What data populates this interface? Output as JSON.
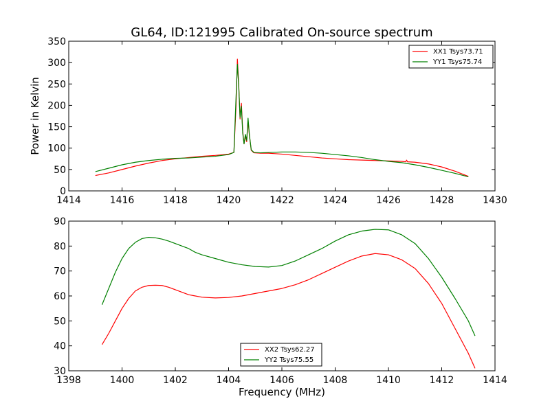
{
  "figure": {
    "title": "GL64, ID:121995 Calibrated On-source spectrum"
  },
  "chart_data": [
    {
      "type": "line",
      "title": "GL64, ID:121995 Calibrated On-source spectrum",
      "xlabel": "",
      "ylabel": "Power in Kelvin",
      "xlim": [
        1414,
        1430
      ],
      "ylim": [
        0,
        350
      ],
      "xticks": [
        1414,
        1416,
        1418,
        1420,
        1422,
        1424,
        1426,
        1428,
        1430
      ],
      "yticks": [
        0,
        50,
        100,
        150,
        200,
        250,
        300,
        350
      ],
      "grid": false,
      "legend_position": "top-right",
      "series": [
        {
          "name": "XX1 Tsys73.71",
          "color": "#ff0000",
          "points": [
            [
              1415.0,
              36
            ],
            [
              1415.5,
              42
            ],
            [
              1416.0,
              50
            ],
            [
              1416.5,
              58
            ],
            [
              1417.0,
              65
            ],
            [
              1417.5,
              71
            ],
            [
              1418.0,
              75
            ],
            [
              1418.5,
              78
            ],
            [
              1419.0,
              81
            ],
            [
              1419.5,
              83
            ],
            [
              1420.0,
              86
            ],
            [
              1420.2,
              90
            ],
            [
              1420.28,
              200
            ],
            [
              1420.33,
              308
            ],
            [
              1420.38,
              250
            ],
            [
              1420.43,
              168
            ],
            [
              1420.48,
              205
            ],
            [
              1420.53,
              140
            ],
            [
              1420.58,
              110
            ],
            [
              1420.63,
              128
            ],
            [
              1420.68,
              115
            ],
            [
              1420.73,
              165
            ],
            [
              1420.78,
              130
            ],
            [
              1420.85,
              95
            ],
            [
              1420.95,
              89
            ],
            [
              1421.2,
              88
            ],
            [
              1421.5,
              88
            ],
            [
              1422.0,
              86
            ],
            [
              1422.5,
              83
            ],
            [
              1423.0,
              80
            ],
            [
              1423.5,
              77
            ],
            [
              1424.0,
              75
            ],
            [
              1424.5,
              73
            ],
            [
              1425.0,
              72
            ],
            [
              1425.5,
              71
            ],
            [
              1426.0,
              70
            ],
            [
              1426.5,
              69
            ],
            [
              1426.65,
              68
            ],
            [
              1426.68,
              72
            ],
            [
              1426.72,
              68
            ],
            [
              1427.0,
              67
            ],
            [
              1427.5,
              63
            ],
            [
              1428.0,
              56
            ],
            [
              1428.5,
              46
            ],
            [
              1429.0,
              34
            ]
          ]
        },
        {
          "name": "YY1 Tsys75.74",
          "color": "#008000",
          "points": [
            [
              1415.0,
              45
            ],
            [
              1415.5,
              53
            ],
            [
              1416.0,
              61
            ],
            [
              1416.5,
              67
            ],
            [
              1417.0,
              71
            ],
            [
              1417.5,
              74
            ],
            [
              1418.0,
              76
            ],
            [
              1418.5,
              77
            ],
            [
              1419.0,
              79
            ],
            [
              1419.5,
              81
            ],
            [
              1420.0,
              85
            ],
            [
              1420.2,
              90
            ],
            [
              1420.28,
              220
            ],
            [
              1420.33,
              296
            ],
            [
              1420.38,
              245
            ],
            [
              1420.43,
              172
            ],
            [
              1420.48,
              198
            ],
            [
              1420.53,
              135
            ],
            [
              1420.58,
              110
            ],
            [
              1420.63,
              132
            ],
            [
              1420.68,
              118
            ],
            [
              1420.73,
              170
            ],
            [
              1420.78,
              132
            ],
            [
              1420.85,
              96
            ],
            [
              1420.95,
              90
            ],
            [
              1421.2,
              89
            ],
            [
              1421.5,
              90
            ],
            [
              1422.0,
              91
            ],
            [
              1422.5,
              91
            ],
            [
              1423.0,
              90
            ],
            [
              1423.5,
              88
            ],
            [
              1424.0,
              85
            ],
            [
              1424.5,
              82
            ],
            [
              1425.0,
              78
            ],
            [
              1425.5,
              73
            ],
            [
              1426.0,
              69
            ],
            [
              1426.5,
              66
            ],
            [
              1427.0,
              61
            ],
            [
              1427.5,
              55
            ],
            [
              1428.0,
              48
            ],
            [
              1428.5,
              41
            ],
            [
              1429.0,
              33
            ]
          ]
        }
      ]
    },
    {
      "type": "line",
      "title": "",
      "xlabel": "Frequency (MHz)",
      "ylabel": "",
      "xlim": [
        1398,
        1414
      ],
      "ylim": [
        30,
        90
      ],
      "xticks": [
        1398,
        1400,
        1402,
        1404,
        1406,
        1408,
        1410,
        1412,
        1414
      ],
      "yticks": [
        30,
        40,
        50,
        60,
        70,
        80,
        90
      ],
      "grid": false,
      "legend_position": "lower-center",
      "series": [
        {
          "name": "XX2 Tsys62.27",
          "color": "#ff0000",
          "points": [
            [
              1399.25,
              40.5
            ],
            [
              1399.5,
              45
            ],
            [
              1399.75,
              50
            ],
            [
              1400.0,
              55
            ],
            [
              1400.25,
              59
            ],
            [
              1400.5,
              62
            ],
            [
              1400.75,
              63.5
            ],
            [
              1401.0,
              64.2
            ],
            [
              1401.25,
              64.3
            ],
            [
              1401.5,
              64.2
            ],
            [
              1401.75,
              63.5
            ],
            [
              1402.0,
              62.5
            ],
            [
              1402.25,
              61.5
            ],
            [
              1402.5,
              60.5
            ],
            [
              1402.75,
              60
            ],
            [
              1403.0,
              59.5
            ],
            [
              1403.5,
              59.2
            ],
            [
              1404.0,
              59.4
            ],
            [
              1404.5,
              60
            ],
            [
              1405.0,
              61
            ],
            [
              1405.5,
              62
            ],
            [
              1406.0,
              63
            ],
            [
              1406.5,
              64.5
            ],
            [
              1407.0,
              66.5
            ],
            [
              1407.5,
              69
            ],
            [
              1408.0,
              71.5
            ],
            [
              1408.5,
              74
            ],
            [
              1409.0,
              76
            ],
            [
              1409.5,
              77
            ],
            [
              1410.0,
              76.5
            ],
            [
              1410.5,
              74.5
            ],
            [
              1411.0,
              71
            ],
            [
              1411.5,
              65
            ],
            [
              1412.0,
              57
            ],
            [
              1412.5,
              47
            ],
            [
              1413.0,
              37
            ],
            [
              1413.25,
              31
            ]
          ]
        },
        {
          "name": "YY2 Tsys75.55",
          "color": "#008000",
          "points": [
            [
              1399.25,
              56.5
            ],
            [
              1399.5,
              63
            ],
            [
              1399.75,
              69.5
            ],
            [
              1400.0,
              75
            ],
            [
              1400.25,
              79
            ],
            [
              1400.5,
              81.5
            ],
            [
              1400.75,
              83
            ],
            [
              1401.0,
              83.5
            ],
            [
              1401.25,
              83.3
            ],
            [
              1401.5,
              82.8
            ],
            [
              1401.75,
              82
            ],
            [
              1402.0,
              81
            ],
            [
              1402.25,
              80
            ],
            [
              1402.5,
              79
            ],
            [
              1402.75,
              77.5
            ],
            [
              1403.0,
              76.5
            ],
            [
              1403.5,
              75
            ],
            [
              1404.0,
              73.5
            ],
            [
              1404.5,
              72.5
            ],
            [
              1405.0,
              71.8
            ],
            [
              1405.5,
              71.6
            ],
            [
              1406.0,
              72.2
            ],
            [
              1406.5,
              74
            ],
            [
              1407.0,
              76.5
            ],
            [
              1407.5,
              79
            ],
            [
              1408.0,
              82
            ],
            [
              1408.5,
              84.5
            ],
            [
              1409.0,
              86
            ],
            [
              1409.5,
              86.7
            ],
            [
              1410.0,
              86.5
            ],
            [
              1410.5,
              84.5
            ],
            [
              1411.0,
              81
            ],
            [
              1411.5,
              75
            ],
            [
              1412.0,
              67.5
            ],
            [
              1412.5,
              59
            ],
            [
              1413.0,
              50
            ],
            [
              1413.25,
              44
            ]
          ]
        }
      ]
    }
  ]
}
